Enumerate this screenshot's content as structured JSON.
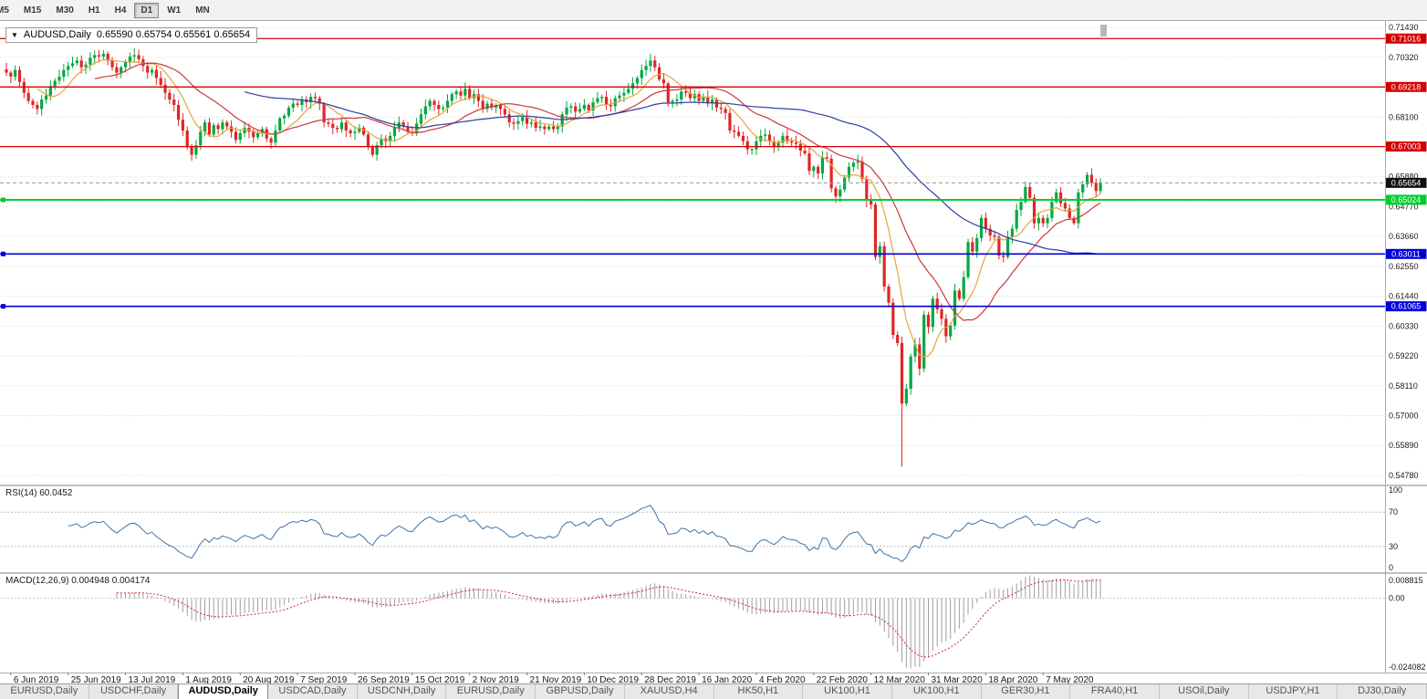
{
  "colors": {
    "candle_up": "#00A843",
    "candle_down": "#E02525",
    "ma_fast": "#E8A33D",
    "ma_mid": "#CC3A3A",
    "ma_slow": "#2B3F9E",
    "rsi_line": "#4072A8",
    "macd_hist": "#9E9E9E",
    "macd_signal": "#D42A2A",
    "grid": "#DCDCDC"
  },
  "toolbar": {
    "timeframes": [
      "M5",
      "M15",
      "M30",
      "H1",
      "H4",
      "D1",
      "W1",
      "MN"
    ],
    "selected": "D1"
  },
  "header": {
    "dropdown_glyph": "▼",
    "symbol": "AUDUSD,Daily",
    "ohlc": "0.65590 0.65754 0.65561 0.65654"
  },
  "price_axis": {
    "ticks": [
      "0.71430",
      "0.70320",
      "0.69210",
      "0.68100",
      "0.66990",
      "0.65880",
      "0.64770",
      "0.63660",
      "0.62550",
      "0.61440",
      "0.60330",
      "0.59220",
      "0.58110",
      "0.57000",
      "0.55890",
      "0.54780"
    ]
  },
  "hlines": [
    {
      "value": 0.71016,
      "label": "0.71016",
      "color": "#D40000",
      "width": 1.3,
      "handles": false
    },
    {
      "value": 0.69218,
      "label": "0.69218",
      "color": "#D40000",
      "width": 1.3,
      "handles": false
    },
    {
      "value": 0.67003,
      "label": "0.67003",
      "color": "#D40000",
      "width": 1.3,
      "handles": false
    },
    {
      "value": 0.65024,
      "label": "0.65024",
      "color": "#00CE2D",
      "width": 2,
      "handles": true
    },
    {
      "value": 0.63011,
      "label": "0.63011",
      "color": "#0000D8",
      "width": 1.6,
      "handles": true
    },
    {
      "value": 0.61065,
      "label": "0.61065",
      "color": "#0000D8",
      "width": 1.6,
      "handles": true
    }
  ],
  "current_price": "0.65654",
  "rsi": {
    "label": "RSI(14) 60.0452",
    "levels": [
      70,
      30
    ],
    "axis_labels": [
      {
        "value": 100,
        "text": "100"
      },
      {
        "value": 70,
        "text": "70"
      },
      {
        "value": 30,
        "text": "30"
      },
      {
        "value": 0,
        "text": "0"
      }
    ]
  },
  "macd": {
    "label": "MACD(12,26,9) 0.004948 0.004174",
    "axis_max_label": "0.008815",
    "axis_zero_label": "0.00",
    "axis_min_label": "-0.024082"
  },
  "date_axis": [
    "6 Jun 2019",
    "25 Jun 2019",
    "13 Jul 2019",
    "1 Aug 2019",
    "20 Aug 2019",
    "7 Sep 2019",
    "26 Sep 2019",
    "15 Oct 2019",
    "2 Nov 2019",
    "21 Nov 2019",
    "10 Dec 2019",
    "28 Dec 2019",
    "16 Jan 2020",
    "4 Feb 2020",
    "22 Feb 2020",
    "12 Mar 2020",
    "31 Mar 2020",
    "18 Apr 2020",
    "7 May 2020"
  ],
  "tabs": {
    "items": [
      "EURUSD,Daily",
      "USDCHF,Daily",
      "AUDUSD,Daily",
      "USDCAD,Daily",
      "USDCNH,Daily",
      "EURUSD,Daily",
      "GBPUSD,Daily",
      "XAUUSD,H4",
      "HK50,H1",
      "UK100,H1",
      "UK100,H1",
      "GER30,H1",
      "FRA40,H1",
      "USOil,Daily",
      "USDJPY,H1",
      "DJ30,Daily"
    ],
    "active_index": 2
  },
  "chart_data": {
    "type": "candlestick",
    "title": "AUDUSD,Daily",
    "y_range": [
      0.5444,
      0.7167
    ],
    "x_first_label_index": 1,
    "x_label_step": 13,
    "closes": [
      0.6975,
      0.696,
      0.6985,
      0.694,
      0.69,
      0.687,
      0.6855,
      0.684,
      0.6875,
      0.689,
      0.6925,
      0.6945,
      0.696,
      0.6985,
      0.7,
      0.701,
      0.702,
      0.6995,
      0.7005,
      0.703,
      0.704,
      0.7035,
      0.7045,
      0.702,
      0.6995,
      0.6975,
      0.6995,
      0.7015,
      0.7035,
      0.704,
      0.7025,
      0.7,
      0.6975,
      0.6985,
      0.6955,
      0.693,
      0.69,
      0.6875,
      0.6855,
      0.68,
      0.676,
      0.67,
      0.667,
      0.6705,
      0.6755,
      0.679,
      0.6745,
      0.678,
      0.6765,
      0.679,
      0.6775,
      0.6755,
      0.6725,
      0.675,
      0.677,
      0.6755,
      0.6735,
      0.675,
      0.6765,
      0.673,
      0.6715,
      0.676,
      0.6805,
      0.6815,
      0.6845,
      0.686,
      0.6855,
      0.6875,
      0.6865,
      0.6885,
      0.688,
      0.686,
      0.679,
      0.6785,
      0.677,
      0.6765,
      0.679,
      0.676,
      0.675,
      0.6755,
      0.677,
      0.6745,
      0.67,
      0.667,
      0.6705,
      0.673,
      0.672,
      0.674,
      0.677,
      0.679,
      0.6775,
      0.6755,
      0.675,
      0.6785,
      0.682,
      0.685,
      0.687,
      0.6855,
      0.684,
      0.6845,
      0.687,
      0.6895,
      0.6905,
      0.689,
      0.6915,
      0.688,
      0.6895,
      0.687,
      0.684,
      0.686,
      0.6845,
      0.6855,
      0.684,
      0.682,
      0.679,
      0.6785,
      0.6795,
      0.681,
      0.6785,
      0.679,
      0.677,
      0.6775,
      0.6765,
      0.6775,
      0.6765,
      0.6775,
      0.682,
      0.6845,
      0.685,
      0.683,
      0.684,
      0.6855,
      0.6835,
      0.6865,
      0.688,
      0.6885,
      0.6855,
      0.685,
      0.688,
      0.689,
      0.69,
      0.6915,
      0.6935,
      0.6955,
      0.6985,
      0.7,
      0.702,
      0.6995,
      0.695,
      0.6935,
      0.6865,
      0.687,
      0.6875,
      0.6905,
      0.69,
      0.688,
      0.6895,
      0.687,
      0.6885,
      0.686,
      0.6875,
      0.6845,
      0.684,
      0.6825,
      0.676,
      0.6755,
      0.674,
      0.672,
      0.669,
      0.669,
      0.672,
      0.674,
      0.6745,
      0.672,
      0.67,
      0.6715,
      0.674,
      0.672,
      0.6715,
      0.671,
      0.6685,
      0.6675,
      0.661,
      0.6625,
      0.66,
      0.666,
      0.6655,
      0.6545,
      0.6515,
      0.654,
      0.6585,
      0.6625,
      0.664,
      0.6645,
      0.658,
      0.65,
      0.6485,
      0.629,
      0.633,
      0.618,
      0.612,
      0.6,
      0.597,
      0.5745,
      0.58,
      0.592,
      0.5965,
      0.5875,
      0.6075,
      0.603,
      0.6135,
      0.6095,
      0.606,
      0.5995,
      0.6035,
      0.6165,
      0.6135,
      0.6215,
      0.6345,
      0.631,
      0.636,
      0.6435,
      0.6395,
      0.637,
      0.6365,
      0.6295,
      0.629,
      0.6365,
      0.6395,
      0.6465,
      0.6495,
      0.655,
      0.651,
      0.6415,
      0.6435,
      0.6415,
      0.6435,
      0.6495,
      0.653,
      0.649,
      0.647,
      0.6435,
      0.6415,
      0.653,
      0.656,
      0.6595,
      0.6565,
      0.6535,
      0.6565
    ],
    "low_overrides": {
      "203": 0.551
    },
    "high_overrides": {
      "245": 0.6605
    },
    "moving_averages": [
      {
        "name": "MA-fast",
        "period": 8,
        "color_key": "ma_fast"
      },
      {
        "name": "MA-mid",
        "period": 21,
        "color_key": "ma_mid"
      },
      {
        "name": "MA-slow",
        "period": 55,
        "color_key": "ma_slow"
      }
    ],
    "rsi_period": 14,
    "macd_params": [
      12,
      26,
      9
    ]
  }
}
